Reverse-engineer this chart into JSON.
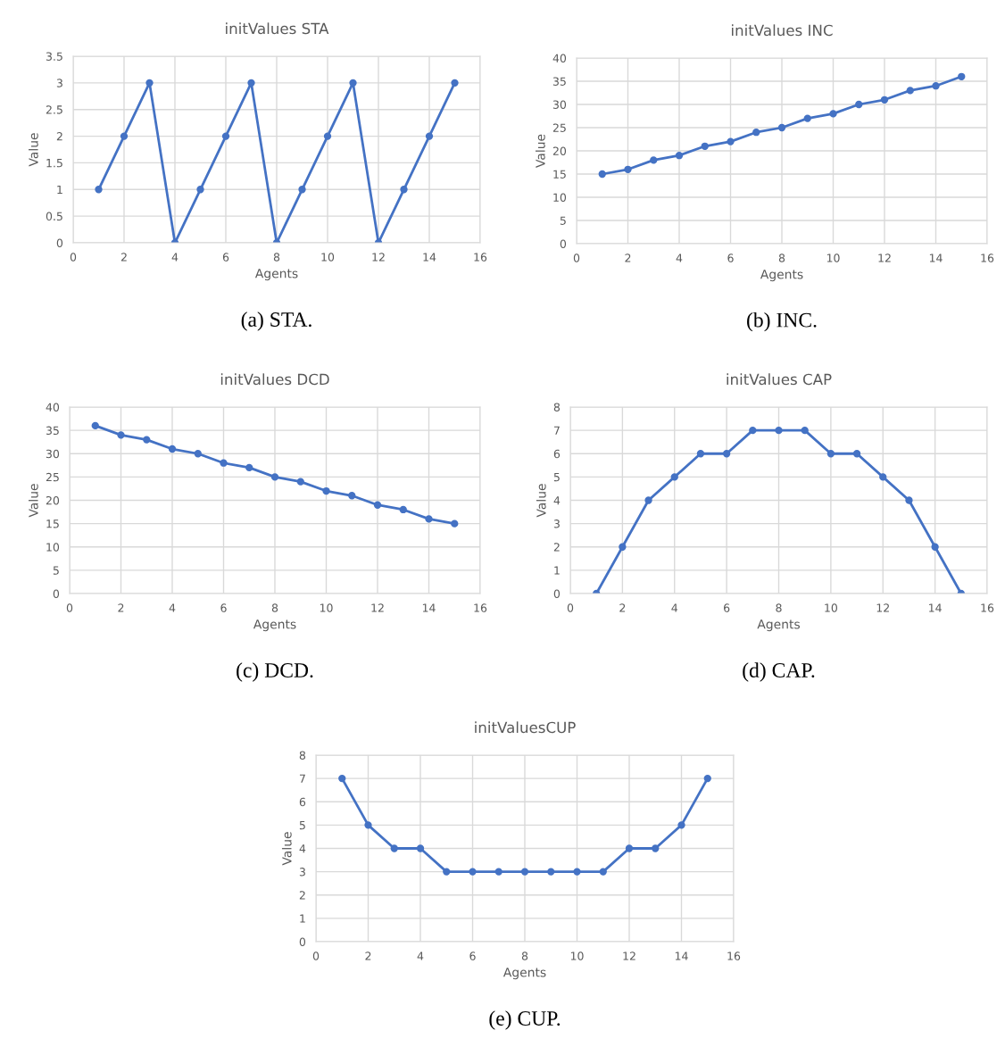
{
  "chart_data": [
    {
      "type": "line",
      "title": "initValues STA",
      "xlabel": "Agents",
      "ylabel": "Value",
      "marker": "circle",
      "line_style": "solid",
      "grid": true,
      "x": [
        1,
        2,
        3,
        4,
        5,
        6,
        7,
        8,
        9,
        10,
        11,
        12,
        13,
        14,
        15
      ],
      "xlim": [
        0,
        16
      ],
      "xticks": [
        0,
        2,
        4,
        6,
        8,
        10,
        12,
        14,
        16
      ],
      "ylim": [
        0,
        3.5
      ],
      "yticks": [
        0,
        0.5,
        1,
        1.5,
        2,
        2.5,
        3,
        3.5
      ],
      "series": [
        {
          "color": "#4472c4",
          "values": [
            1,
            2,
            3,
            0,
            1,
            2,
            3,
            0,
            1,
            2,
            3,
            0,
            1,
            2,
            3
          ]
        }
      ],
      "annotations": [
        "(a) STA."
      ]
    },
    {
      "type": "line",
      "title": "initValues INC",
      "xlabel": "Agents",
      "ylabel": "Value",
      "marker": "circle",
      "line_style": "solid",
      "grid": true,
      "x": [
        1,
        2,
        3,
        4,
        5,
        6,
        7,
        8,
        9,
        10,
        11,
        12,
        13,
        14,
        15
      ],
      "xlim": [
        0,
        16
      ],
      "xticks": [
        0,
        2,
        4,
        6,
        8,
        10,
        12,
        14,
        16
      ],
      "ylim": [
        0,
        40
      ],
      "yticks": [
        0,
        5,
        10,
        15,
        20,
        25,
        30,
        35,
        40
      ],
      "series": [
        {
          "color": "#4472c4",
          "values": [
            15,
            16,
            18,
            19,
            21,
            22,
            24,
            25,
            27,
            28,
            30,
            31,
            33,
            34,
            36
          ]
        }
      ],
      "annotations": [
        "(b) INC."
      ]
    },
    {
      "type": "line",
      "title": "initValues DCD",
      "xlabel": "Agents",
      "ylabel": "Value",
      "marker": "circle",
      "line_style": "solid",
      "grid": true,
      "x": [
        1,
        2,
        3,
        4,
        5,
        6,
        7,
        8,
        9,
        10,
        11,
        12,
        13,
        14,
        15
      ],
      "xlim": [
        0,
        16
      ],
      "xticks": [
        0,
        2,
        4,
        6,
        8,
        10,
        12,
        14,
        16
      ],
      "ylim": [
        0,
        40
      ],
      "yticks": [
        0,
        5,
        10,
        15,
        20,
        25,
        30,
        35,
        40
      ],
      "series": [
        {
          "color": "#4472c4",
          "values": [
            36,
            34,
            33,
            31,
            30,
            28,
            27,
            25,
            24,
            22,
            21,
            19,
            18,
            16,
            15
          ]
        }
      ],
      "annotations": [
        "(c) DCD."
      ]
    },
    {
      "type": "line",
      "title": "initValues CAP",
      "xlabel": "Agents",
      "ylabel": "Value",
      "marker": "circle",
      "line_style": "solid",
      "grid": true,
      "x": [
        1,
        2,
        3,
        4,
        5,
        6,
        7,
        8,
        9,
        10,
        11,
        12,
        13,
        14,
        15
      ],
      "xlim": [
        0,
        16
      ],
      "xticks": [
        0,
        2,
        4,
        6,
        8,
        10,
        12,
        14,
        16
      ],
      "ylim": [
        0,
        8
      ],
      "yticks": [
        0,
        1,
        2,
        3,
        4,
        5,
        6,
        7,
        8
      ],
      "series": [
        {
          "color": "#4472c4",
          "values": [
            0,
            2,
            4,
            5,
            6,
            6,
            7,
            7,
            7,
            6,
            6,
            5,
            4,
            2,
            0
          ]
        }
      ],
      "annotations": [
        "(d) CAP."
      ]
    },
    {
      "type": "line",
      "title": "initValuesCUP",
      "xlabel": "Agents",
      "ylabel": "Value",
      "marker": "circle",
      "line_style": "solid",
      "grid": true,
      "x": [
        1,
        2,
        3,
        4,
        5,
        6,
        7,
        8,
        9,
        10,
        11,
        12,
        13,
        14,
        15
      ],
      "xlim": [
        0,
        16
      ],
      "xticks": [
        0,
        2,
        4,
        6,
        8,
        10,
        12,
        14,
        16
      ],
      "ylim": [
        0,
        8
      ],
      "yticks": [
        0,
        1,
        2,
        3,
        4,
        5,
        6,
        7,
        8
      ],
      "series": [
        {
          "color": "#4472c4",
          "values": [
            7,
            5,
            4,
            4,
            3,
            3,
            3,
            3,
            3,
            3,
            3,
            4,
            4,
            5,
            7
          ]
        }
      ],
      "annotations": [
        "(e) CUP."
      ]
    }
  ]
}
